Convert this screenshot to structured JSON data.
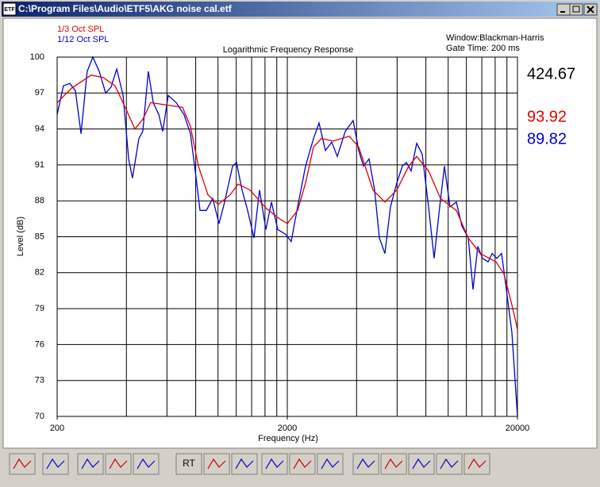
{
  "window": {
    "title": "C:\\Program Files\\Audio\\ETF5\\AKG noise cal.etf",
    "icon_label": "ETF"
  },
  "chart_data": {
    "type": "line",
    "title": "Logarithmic Frequency Response",
    "x_label": "Frequency (Hz)",
    "y_label": "Level (dB)",
    "annotations": [
      "Window:Blackman-Harris",
      "Gate Time: 200 ms"
    ],
    "xscale": "log",
    "xlim": [
      200,
      20000
    ],
    "xticks": [
      200,
      2000,
      20000
    ],
    "xgrid": [
      200,
      400,
      600,
      800,
      1000,
      1200,
      1400,
      1600,
      1800,
      2000,
      4000,
      6000,
      8000,
      10000,
      12000,
      14000,
      16000,
      18000,
      20000
    ],
    "ylim": [
      70,
      100
    ],
    "yticks": [
      70,
      73,
      76,
      79,
      82,
      85,
      88,
      91,
      94,
      97,
      100
    ],
    "grid": true,
    "series": [
      {
        "name": "1/3 Oct SPL",
        "color": "#e00000",
        "x": [
          200,
          231,
          281,
          317,
          357,
          402,
          435,
          471,
          510,
          598,
          701,
          759,
          822,
          904,
          1002,
          1129,
          1222,
          1377,
          1614,
          1818,
          2000,
          2218,
          2401,
          2599,
          2814,
          3170,
          3716,
          4086,
          4714,
          5312,
          5982,
          6740,
          7298,
          8220,
          9260,
          10850,
          12220,
          13770,
          16140,
          17480,
          18920,
          20000
        ],
        "values": [
          96.2,
          97.4,
          98.5,
          98.3,
          97.6,
          95.5,
          94,
          94.8,
          96.2,
          96,
          95.8,
          94.2,
          90.9,
          88.5,
          87.7,
          88.5,
          89.4,
          88.9,
          87.4,
          86.6,
          86.1,
          87.2,
          89.5,
          92.5,
          93.2,
          93,
          93.4,
          92.5,
          88.9,
          87.9,
          88.9,
          90.9,
          91.7,
          90.5,
          88.2,
          87.2,
          84.9,
          83.6,
          82.9,
          81.9,
          79.3,
          77.3
        ]
      },
      {
        "name": "1/12 Oct SPL",
        "color": "#0000d0",
        "x": [
          200,
          213,
          227,
          240,
          254,
          270,
          286,
          305,
          325,
          343,
          363,
          387,
          409,
          425,
          453,
          471,
          498,
          523,
          553,
          575,
          608,
          658,
          712,
          759,
          803,
          835,
          890,
          948,
          1010,
          1068,
          1157,
          1203,
          1272,
          1345,
          1433,
          1515,
          1614,
          1706,
          1818,
          1968,
          2080,
          2218,
          2401,
          2599,
          2748,
          2929,
          3121,
          3298,
          3572,
          3866,
          4086,
          4286,
          4532,
          4790,
          5024,
          5312,
          5614,
          5982,
          6325,
          6580,
          6900,
          7298,
          7716,
          8220,
          8690,
          9188,
          9634,
          10184,
          10854,
          11474,
          12220,
          12820,
          13450,
          14100,
          14910,
          15520,
          16270,
          17060,
          17900,
          18920,
          20000
        ],
        "values": [
          95.2,
          97.6,
          97.8,
          97.2,
          93.6,
          98.8,
          100,
          98.8,
          97,
          97.5,
          99,
          96.8,
          91.5,
          89.9,
          93.2,
          93.8,
          98.8,
          96.2,
          95.2,
          93.8,
          96.8,
          96.2,
          95.2,
          93.6,
          89.9,
          87.2,
          87.2,
          88.2,
          86.1,
          87.9,
          90.9,
          91.2,
          88.9,
          87.2,
          84.9,
          88.9,
          85.6,
          87.9,
          85.6,
          85.2,
          84.6,
          87.5,
          90.9,
          93.2,
          94.5,
          92.2,
          92.9,
          91.7,
          93.8,
          94.7,
          92.2,
          90.9,
          91.5,
          88.9,
          84.9,
          83.6,
          87.5,
          89.5,
          90.9,
          91.2,
          90.5,
          92.8,
          91.9,
          87.5,
          83.2,
          87.5,
          90.9,
          87.5,
          87.9,
          85.9,
          84.9,
          80.6,
          84.2,
          83.2,
          82.9,
          83.6,
          83.2,
          83.6,
          80.6,
          77,
          70
        ]
      }
    ]
  },
  "readouts": [
    {
      "text": "424.67",
      "color": "#000000"
    },
    {
      "text": "93.92",
      "color": "#e00000"
    },
    {
      "text": "89.82",
      "color": "#0000d0"
    }
  ],
  "toolbar": {
    "rt_label": "RT"
  }
}
